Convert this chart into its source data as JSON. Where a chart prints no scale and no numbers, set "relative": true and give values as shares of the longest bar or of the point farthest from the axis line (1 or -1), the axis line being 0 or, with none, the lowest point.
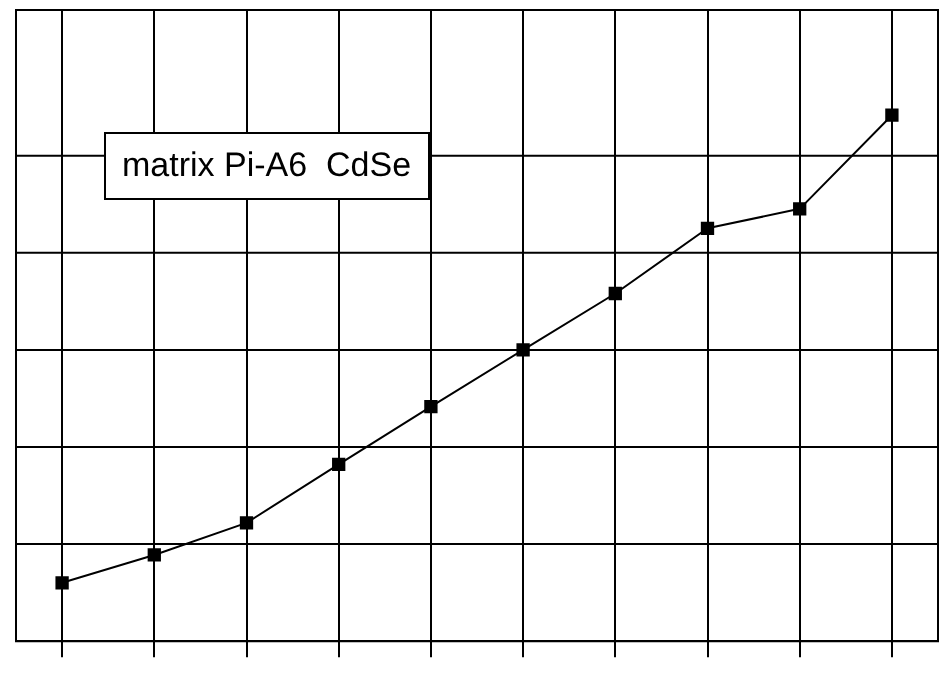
{
  "chart_data": {
    "type": "line",
    "relative": true,
    "categories": [
      null,
      null,
      null,
      null,
      null,
      null,
      null,
      null,
      null,
      null
    ],
    "series": [
      {
        "color": "#000000",
        "values": [
          0.111,
          0.164,
          0.225,
          0.336,
          0.446,
          0.554,
          0.661,
          0.785,
          0.822,
          1
        ]
      }
    ],
    "annotations": [
      "matrix Pi-A6  CdSe"
    ],
    "grid": true,
    "marker": "square",
    "line_style": "solid",
    "legend": false
  }
}
